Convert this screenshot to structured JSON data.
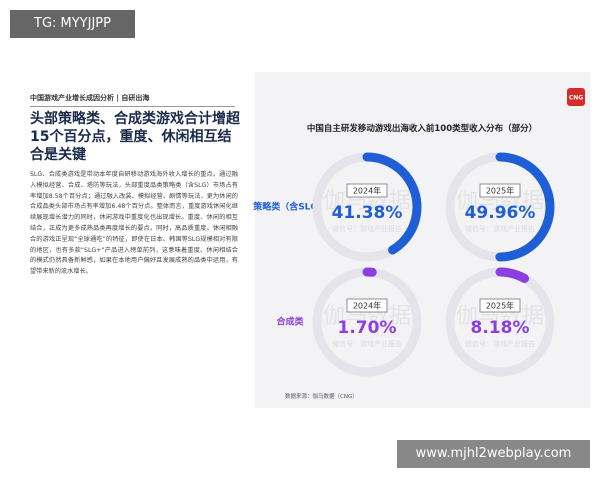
{
  "tag": "TG: MYYJJPP",
  "article": {
    "kicker": "中国游戏产业增长成因分析 | 自研出海",
    "headline": "头部策略类、合成类游戏合计增超15个百分点，重度、休闲相互结合是关键",
    "body": "SLG、合成类游戏是带动本年度自研移动游戏海外收入增长的重点。通过融入模拟经营、合成、塔防等玩法，头部重度品类策略类（含SLG）市场占有率增加8.58个百分点；通过融入改装、模拟经营、剧情等玩法，更为休闲的合成品类头部市场占有率增加6.48个百分点。整体而言，重度游戏休闲化继续展现增长潜力的同时，休闲游戏中重度化也出现增长。重度、休闲的相互结合，正成为更多成熟品类再度增长的要点。同时，高品质重度、休闲相融合的游戏正呈现“全球通吃”的特征，即使在日本、韩国等SLG规模相对有限的地区，也有多款“SLG+”产品进入榜单前列，这意味着重度、休闲相结合的模式仍然具备新鲜感，如果在本地用户偏好且发展成熟的品类中运用，有望带来新的流水增长。"
  },
  "infographic": {
    "logo": "CNG",
    "title": "中国自主研发移动游戏出海收入前100类型收入分布（部分）",
    "watermark": "伽马数据",
    "watermark_sub": "微信号：游戏产业报告",
    "rows": [
      {
        "label": "策略类（含SLG）",
        "color": "#1f5fd6",
        "items": [
          {
            "year": "2024年",
            "value": 41.38,
            "value_label": "41.38%"
          },
          {
            "year": "2025年",
            "value": 49.96,
            "value_label": "49.96%"
          }
        ]
      },
      {
        "label": "合成类",
        "color": "#8b3fe0",
        "items": [
          {
            "year": "2024年",
            "value": 1.7,
            "value_label": "1.70%"
          },
          {
            "year": "2025年",
            "value": 8.18,
            "value_label": "8.18%"
          }
        ]
      }
    ],
    "source": "数据来源：伽马数据（CNG）"
  },
  "site": "www.mjhl2webplay.com"
}
